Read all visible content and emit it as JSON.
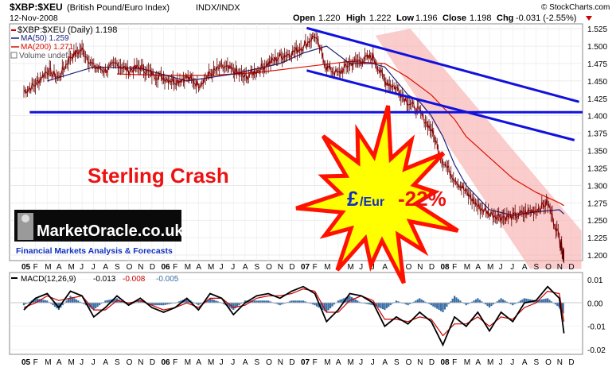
{
  "header": {
    "symbol": "$XBP:$XEU",
    "description": "(British Pound/Euro Index)",
    "exchange": "INDX/INDX",
    "date": "12-Nov-2008",
    "open_label": "Open",
    "open_value": "1.220",
    "high_label": "High",
    "high_value": "1.222",
    "low_label": "Low",
    "low_value": "1.196",
    "close_label": "Close",
    "close_value": "1.198",
    "chg_label": "Chg",
    "chg_value": "-0.031 (-2.55%)",
    "watermark": "© StockCharts.com"
  },
  "legend": {
    "price": "$XBP:$XEU (Daily) 1.198",
    "ma50": "MA(50) 1.259",
    "ma200": "MA(200) 1.271",
    "volume": "Volume undef"
  },
  "annotations": {
    "title": "Sterling Crash",
    "burst_pound": "£",
    "burst_eur": "/Eur",
    "burst_pct": "-22%"
  },
  "logo": {
    "name": "MarketOracle.co.uk",
    "tagline": "Financial Markets Analysis & Forecasts"
  },
  "macd": {
    "label_main": "MACD(12,26,9)",
    "value_macd": "-0.013",
    "value_signal": "-0.008",
    "value_hist": "-0.005",
    "yticks": [
      "0.01",
      "0.00",
      "-0.01",
      "-0.02"
    ]
  },
  "colors": {
    "price": "#cc0000",
    "ma50": "#1a237e",
    "ma200": "#dd1100",
    "trendline": "#1111dd",
    "channel": "#f8b0b0",
    "burst_fill": "#ffff00",
    "burst_stroke": "#ff1100",
    "macd_hist": "#3b6ea5",
    "macd_line": "#000000",
    "signal_line": "#cc0000"
  },
  "chart_data": {
    "type": "line",
    "price_axis": {
      "ticks": [
        "1.525",
        "1.500",
        "1.475",
        "1.450",
        "1.425",
        "1.400",
        "1.375",
        "1.350",
        "1.325",
        "1.300",
        "1.275",
        "1.250",
        "1.225",
        "1.200"
      ],
      "ylim": [
        1.192,
        1.532
      ]
    },
    "x_axis": {
      "month_labels": [
        {
          "t": 0,
          "text": "05",
          "year": true
        },
        {
          "t": 1,
          "text": "F"
        },
        {
          "t": 2,
          "text": "M"
        },
        {
          "t": 3,
          "text": "A"
        },
        {
          "t": 4,
          "text": "M"
        },
        {
          "t": 5,
          "text": "J"
        },
        {
          "t": 6,
          "text": "J"
        },
        {
          "t": 7,
          "text": "A"
        },
        {
          "t": 8,
          "text": "S"
        },
        {
          "t": 9,
          "text": "O"
        },
        {
          "t": 10,
          "text": "N"
        },
        {
          "t": 11,
          "text": "D"
        },
        {
          "t": 12,
          "text": "06",
          "year": true
        },
        {
          "t": 13,
          "text": "F"
        },
        {
          "t": 14,
          "text": "M"
        },
        {
          "t": 15,
          "text": "A"
        },
        {
          "t": 16,
          "text": "M"
        },
        {
          "t": 17,
          "text": "J"
        },
        {
          "t": 18,
          "text": "J"
        },
        {
          "t": 19,
          "text": "A"
        },
        {
          "t": 20,
          "text": "S"
        },
        {
          "t": 21,
          "text": "O"
        },
        {
          "t": 22,
          "text": "N"
        },
        {
          "t": 23,
          "text": "D"
        },
        {
          "t": 24,
          "text": "07",
          "year": true
        },
        {
          "t": 25,
          "text": "F"
        },
        {
          "t": 26,
          "text": "M"
        },
        {
          "t": 27,
          "text": "A"
        },
        {
          "t": 28,
          "text": "M"
        },
        {
          "t": 29,
          "text": "J"
        },
        {
          "t": 30,
          "text": "J"
        },
        {
          "t": 31,
          "text": "A"
        },
        {
          "t": 32,
          "text": "S"
        },
        {
          "t": 33,
          "text": "O"
        },
        {
          "t": 34,
          "text": "N"
        },
        {
          "t": 35,
          "text": "D"
        },
        {
          "t": 36,
          "text": "08",
          "year": true
        },
        {
          "t": 37,
          "text": "F"
        },
        {
          "t": 38,
          "text": "M"
        },
        {
          "t": 39,
          "text": "A"
        },
        {
          "t": 40,
          "text": "M"
        },
        {
          "t": 41,
          "text": "J"
        },
        {
          "t": 42,
          "text": "J"
        },
        {
          "t": 43,
          "text": "A"
        },
        {
          "t": 44,
          "text": "S"
        },
        {
          "t": 45,
          "text": "O"
        },
        {
          "t": 46,
          "text": "N"
        },
        {
          "t": 47,
          "text": "D"
        }
      ]
    },
    "series": [
      {
        "name": "$XBP:$XEU (Daily)",
        "t": [
          0,
          1,
          2,
          3,
          4,
          5,
          6,
          7,
          8,
          9,
          10,
          11,
          12,
          13,
          14,
          15,
          16,
          17,
          18,
          19,
          20,
          21,
          22,
          23,
          24,
          25,
          26,
          27,
          28,
          29,
          30,
          31,
          32,
          33,
          34,
          35,
          36,
          37,
          38,
          39,
          40,
          41,
          42,
          43,
          44,
          45,
          46,
          46.4
        ],
        "values": [
          1.435,
          1.445,
          1.465,
          1.455,
          1.485,
          1.495,
          1.47,
          1.465,
          1.475,
          1.465,
          1.47,
          1.46,
          1.455,
          1.45,
          1.455,
          1.445,
          1.46,
          1.47,
          1.465,
          1.455,
          1.465,
          1.475,
          1.485,
          1.49,
          1.5,
          1.515,
          1.47,
          1.46,
          1.475,
          1.48,
          1.485,
          1.45,
          1.44,
          1.42,
          1.405,
          1.38,
          1.335,
          1.31,
          1.29,
          1.27,
          1.26,
          1.255,
          1.255,
          1.26,
          1.265,
          1.275,
          1.225,
          1.198
        ]
      },
      {
        "name": "MA(50)",
        "t": [
          2,
          6,
          10,
          14,
          18,
          22,
          24,
          26,
          28,
          30,
          31,
          32,
          33,
          34,
          35,
          36,
          37,
          38,
          40,
          42,
          44,
          46,
          46.4
        ],
        "values": [
          1.45,
          1.47,
          1.468,
          1.45,
          1.46,
          1.475,
          1.49,
          1.5,
          1.475,
          1.475,
          1.47,
          1.45,
          1.43,
          1.42,
          1.4,
          1.37,
          1.33,
          1.3,
          1.265,
          1.257,
          1.262,
          1.265,
          1.259
        ]
      },
      {
        "name": "MA(200)",
        "t": [
          8,
          12,
          16,
          20,
          24,
          28,
          31,
          33,
          35,
          37,
          38,
          40,
          42,
          44,
          46,
          46.4
        ],
        "values": [
          1.46,
          1.458,
          1.458,
          1.462,
          1.47,
          1.478,
          1.475,
          1.455,
          1.43,
          1.395,
          1.37,
          1.34,
          1.31,
          1.29,
          1.275,
          1.271
        ]
      }
    ],
    "trendlines": [
      {
        "name": "horizontal support",
        "t": [
          0.5,
          48
        ],
        "values": [
          1.405,
          1.405
        ]
      },
      {
        "name": "upper channel",
        "t": [
          24.3,
          47.7
        ],
        "values": [
          1.526,
          1.42
        ]
      },
      {
        "name": "lower channel",
        "t": [
          24.3,
          47.3
        ],
        "values": [
          1.465,
          1.365
        ]
      }
    ],
    "channel_band": {
      "t": [
        30.2,
        33.2,
        47.9,
        47.9,
        43.5
      ],
      "values": [
        1.515,
        1.525,
        1.235,
        1.18,
        1.18
      ]
    },
    "macd_panel": {
      "ylim": [
        -0.022,
        0.013
      ],
      "t": [
        0,
        1,
        2,
        3,
        4,
        5,
        6,
        7,
        8,
        9,
        10,
        11,
        12,
        13,
        14,
        15,
        16,
        17,
        18,
        19,
        20,
        21,
        22,
        23,
        24,
        25,
        26,
        27,
        28,
        29,
        30,
        31,
        32,
        33,
        34,
        35,
        36,
        37,
        38,
        39,
        40,
        41,
        42,
        43,
        44,
        45,
        46,
        46.4
      ],
      "macd": [
        -0.003,
        0.002,
        0.004,
        -0.002,
        0.005,
        0.003,
        -0.006,
        -0.002,
        0.003,
        -0.001,
        0.002,
        -0.002,
        -0.004,
        -0.002,
        0.002,
        -0.003,
        0.004,
        0.002,
        -0.005,
        0.0,
        0.003,
        0.004,
        0.002,
        0.005,
        0.007,
        0.004,
        -0.008,
        -0.003,
        0.004,
        0.003,
        0.0,
        -0.01,
        -0.006,
        -0.009,
        -0.004,
        -0.008,
        -0.018,
        -0.006,
        -0.01,
        -0.004,
        -0.012,
        -0.004,
        -0.008,
        0.0,
        0.001,
        0.007,
        0.002,
        -0.013
      ],
      "signal": [
        -0.002,
        0.0,
        0.003,
        0.001,
        0.002,
        0.003,
        -0.003,
        -0.003,
        0.001,
        0.0,
        0.001,
        -0.001,
        -0.003,
        -0.002,
        0.0,
        -0.002,
        0.002,
        0.002,
        -0.002,
        -0.001,
        0.002,
        0.003,
        0.003,
        0.004,
        0.006,
        0.005,
        -0.004,
        -0.004,
        0.001,
        0.003,
        0.001,
        -0.007,
        -0.007,
        -0.008,
        -0.006,
        -0.007,
        -0.014,
        -0.009,
        -0.009,
        -0.006,
        -0.01,
        -0.006,
        -0.007,
        -0.002,
        0.0,
        0.005,
        0.004,
        -0.008
      ]
    }
  }
}
